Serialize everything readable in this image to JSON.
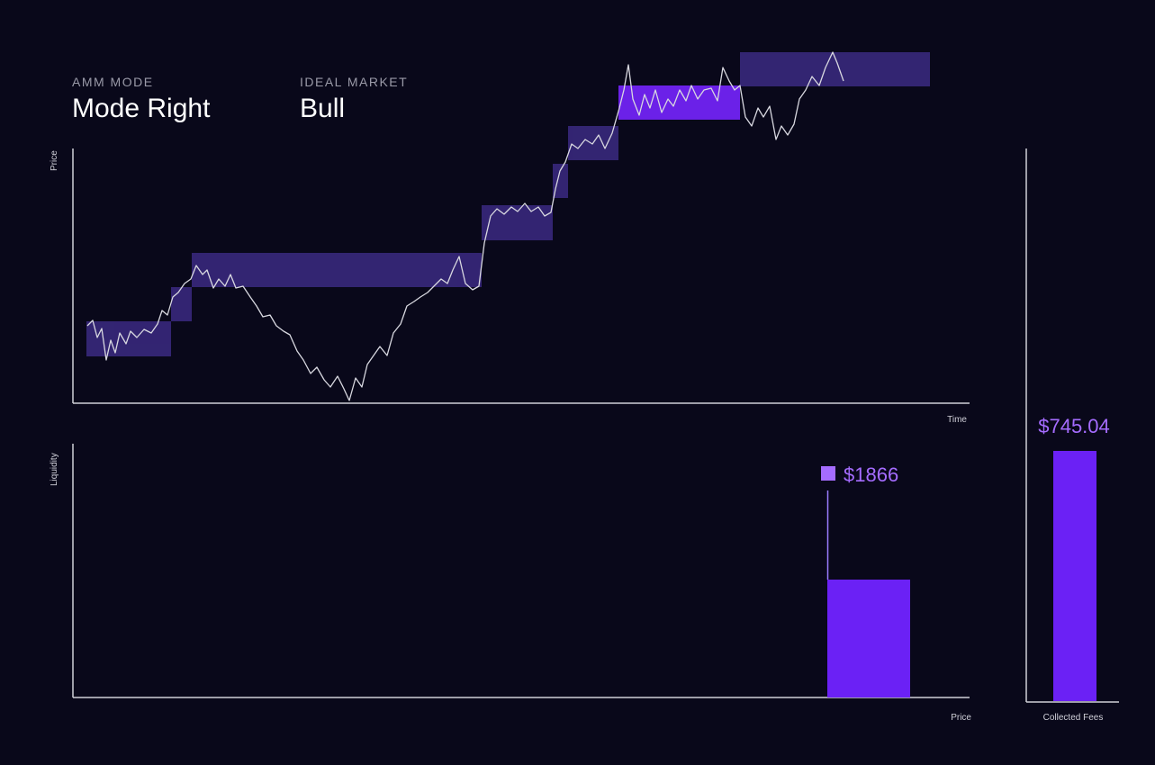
{
  "header": {
    "mode_label": "AMM MODE",
    "mode": "Mode Right",
    "market_label": "IDEAL MARKET",
    "market": "Bull"
  },
  "price_chart": {
    "y_label": "Price",
    "x_label": "Time"
  },
  "liquidity_chart": {
    "y_label": "Liquidity",
    "x_label": "Price",
    "value_label": "$1866"
  },
  "fees_chart": {
    "x_label": "Collected Fees",
    "value_label": "$745.04"
  }
}
